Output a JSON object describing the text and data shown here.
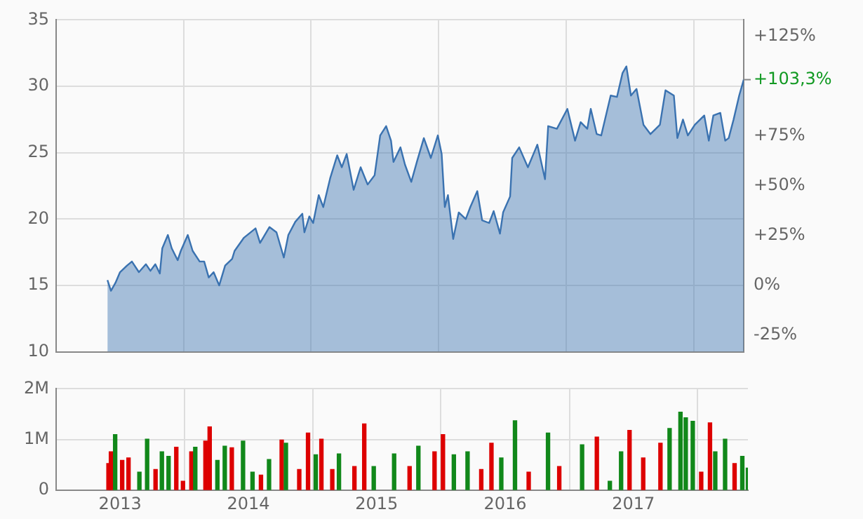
{
  "chart_data": [
    {
      "type": "area",
      "x": [
        "2013-05-28",
        "2013-06-07",
        "2013-06-20",
        "2013-07-03",
        "2013-07-23",
        "2013-08-06",
        "2013-08-26",
        "2013-09-15",
        "2013-09-28",
        "2013-10-12",
        "2013-10-25",
        "2013-11-01",
        "2013-11-17",
        "2013-11-28",
        "2013-12-15",
        "2013-12-24",
        "2014-01-13",
        "2014-01-27",
        "2014-02-16",
        "2014-03-01",
        "2014-03-14",
        "2014-03-28",
        "2014-04-13",
        "2014-04-30",
        "2014-05-20",
        "2014-05-27",
        "2014-06-23",
        "2014-07-26",
        "2014-08-08",
        "2014-09-04",
        "2014-09-24",
        "2014-10-15",
        "2014-10-28",
        "2014-11-17",
        "2014-12-07",
        "2014-12-13",
        "2014-12-27",
        "2015-01-07",
        "2015-01-23",
        "2015-02-05",
        "2015-02-25",
        "2015-03-17",
        "2015-03-30",
        "2015-04-13",
        "2015-05-03",
        "2015-05-23",
        "2015-06-12",
        "2015-07-02",
        "2015-07-18",
        "2015-08-04",
        "2015-08-18",
        "2015-08-25",
        "2015-09-14",
        "2015-09-27",
        "2015-10-15",
        "2015-10-31",
        "2015-11-20",
        "2015-12-10",
        "2015-12-30",
        "2016-01-10",
        "2016-01-19",
        "2016-01-28",
        "2016-02-12",
        "2016-02-28",
        "2016-03-19",
        "2016-04-01",
        "2016-04-21",
        "2016-05-05",
        "2016-05-25",
        "2016-06-07",
        "2016-06-25",
        "2016-07-04",
        "2016-07-24",
        "2016-07-30",
        "2016-08-19",
        "2016-09-13",
        "2016-10-10",
        "2016-11-01",
        "2016-11-10",
        "2016-12-05",
        "2017-01-04",
        "2017-01-26",
        "2017-02-11",
        "2017-03-02",
        "2017-03-12",
        "2017-03-29",
        "2017-04-11",
        "2017-05-08",
        "2017-05-26",
        "2017-06-11",
        "2017-06-22",
        "2017-07-05",
        "2017-07-21",
        "2017-08-10",
        "2017-08-30",
        "2017-09-26",
        "2017-10-12",
        "2017-11-05",
        "2017-11-15",
        "2017-12-01",
        "2017-12-15",
        "2018-01-04",
        "2018-01-31",
        "2018-02-13",
        "2018-02-26",
        "2018-03-18",
        "2018-04-01",
        "2018-04-11",
        "2018-04-25",
        "2018-05-11",
        "2018-05-24"
      ],
      "series": [
        {
          "color": "#3a72b0",
          "values": [
            15.4,
            14.6,
            15.2,
            16.0,
            16.5,
            16.8,
            16.0,
            16.6,
            16.1,
            16.6,
            15.9,
            17.8,
            18.8,
            17.8,
            16.9,
            17.6,
            18.8,
            17.6,
            16.8,
            16.8,
            15.6,
            16.0,
            15.0,
            16.5,
            17.0,
            17.6,
            18.6,
            19.3,
            18.2,
            19.4,
            19.0,
            17.1,
            18.8,
            19.8,
            20.4,
            19.0,
            20.2,
            19.7,
            21.8,
            20.9,
            23.1,
            24.8,
            23.9,
            24.9,
            22.2,
            23.9,
            22.6,
            23.3,
            26.3,
            27.0,
            25.9,
            24.3,
            25.4,
            24.1,
            22.8,
            24.3,
            26.1,
            24.6,
            26.3,
            24.9,
            20.9,
            21.8,
            18.5,
            20.5,
            20.0,
            20.9,
            22.1,
            19.9,
            19.7,
            20.6,
            18.9,
            20.5,
            21.7,
            24.6,
            25.4,
            23.9,
            25.6,
            23.0,
            27.0,
            26.8,
            28.3,
            25.9,
            27.3,
            26.8,
            28.3,
            26.4,
            26.3,
            29.3,
            29.2,
            31.0,
            31.5,
            29.3,
            29.8,
            27.1,
            26.4,
            27.1,
            29.7,
            29.3,
            26.1,
            27.5,
            26.3,
            27.1,
            27.8,
            25.9,
            27.8,
            28.0,
            25.9,
            26.1,
            27.5,
            29.3,
            30.5
          ]
        }
      ],
      "xlim": [
        "2013-01-01",
        "2018-05-24"
      ],
      "xticks": [
        {
          "value": "2014-01-01",
          "label": null
        },
        {
          "value": "2015-01-01",
          "label": null
        },
        {
          "value": "2016-01-01",
          "label": null
        },
        {
          "value": "2017-01-01",
          "label": null
        },
        {
          "value": "2018-01-01",
          "label": null
        }
      ],
      "ylim": [
        10,
        35
      ],
      "yticks": [
        10,
        15,
        20,
        25,
        30,
        35
      ],
      "y2lim": [
        -33.3,
        133.3
      ],
      "y2ticks": [
        {
          "value": -25,
          "label": "-25%"
        },
        {
          "value": 0,
          "label": "0%"
        },
        {
          "value": 25,
          "label": "+25%"
        },
        {
          "value": 50,
          "label": "+50%"
        },
        {
          "value": 75,
          "label": "+75%"
        },
        {
          "value": 125,
          "label": "+125%"
        }
      ],
      "annotations": [
        {
          "text": "+103,3%",
          "x": "2018-05-24",
          "y": 30.5
        }
      ],
      "tick_labels": "y",
      "grid": true,
      "legend": false
    },
    {
      "type": "bar",
      "x": [
        "2013-05-30",
        "2013-06-06",
        "2013-06-18",
        "2013-07-08",
        "2013-07-26",
        "2013-08-26",
        "2013-09-17",
        "2013-10-11",
        "2013-10-29",
        "2013-11-17",
        "2013-12-09",
        "2013-12-28",
        "2014-01-21",
        "2014-02-01",
        "2014-03-02",
        "2014-03-14",
        "2014-04-05",
        "2014-04-26",
        "2014-05-16",
        "2014-06-17",
        "2014-07-14",
        "2014-08-07",
        "2014-08-30",
        "2014-10-05",
        "2014-10-17",
        "2014-11-24",
        "2014-12-19",
        "2015-01-10",
        "2015-01-26",
        "2015-02-26",
        "2015-03-17",
        "2015-04-30",
        "2015-05-28",
        "2015-06-24",
        "2015-08-21",
        "2015-10-04",
        "2015-10-29",
        "2015-12-14",
        "2016-01-07",
        "2016-02-07",
        "2016-03-17",
        "2016-04-25",
        "2016-05-24",
        "2016-06-21",
        "2016-07-30",
        "2016-09-07",
        "2016-11-01",
        "2016-12-03",
        "2017-02-06",
        "2017-03-20",
        "2017-04-26",
        "2017-05-28",
        "2017-06-21",
        "2017-07-30",
        "2017-09-17",
        "2017-10-13",
        "2017-11-13",
        "2017-11-28",
        "2017-12-18",
        "2018-01-11",
        "2018-02-05",
        "2018-02-20",
        "2018-03-20",
        "2018-04-16",
        "2018-05-08",
        "2018-05-24"
      ],
      "series": [
        {
          "values": [
            530000,
            760000,
            1100000,
            590000,
            640000,
            360000,
            1010000,
            410000,
            760000,
            670000,
            850000,
            180000,
            760000,
            850000,
            970000,
            1250000,
            590000,
            870000,
            840000,
            970000,
            360000,
            300000,
            610000,
            990000,
            930000,
            410000,
            1130000,
            700000,
            1010000,
            410000,
            720000,
            470000,
            1310000,
            470000,
            720000,
            470000,
            870000,
            760000,
            1100000,
            700000,
            760000,
            410000,
            930000,
            640000,
            1370000,
            360000,
            1130000,
            470000,
            900000,
            1050000,
            180000,
            760000,
            1180000,
            640000,
            930000,
            1220000,
            1540000,
            1430000,
            1360000,
            360000,
            1330000,
            760000,
            1010000,
            530000,
            670000,
            440000
          ],
          "colors": [
            "#dd0000",
            "#dd0000",
            "#11881a",
            "#dd0000",
            "#dd0000",
            "#11881a",
            "#11881a",
            "#dd0000",
            "#11881a",
            "#11881a",
            "#dd0000",
            "#dd0000",
            "#dd0000",
            "#11881a",
            "#dd0000",
            "#dd0000",
            "#11881a",
            "#11881a",
            "#dd0000",
            "#11881a",
            "#11881a",
            "#dd0000",
            "#11881a",
            "#dd0000",
            "#11881a",
            "#dd0000",
            "#dd0000",
            "#11881a",
            "#dd0000",
            "#dd0000",
            "#11881a",
            "#dd0000",
            "#dd0000",
            "#11881a",
            "#11881a",
            "#dd0000",
            "#11881a",
            "#dd0000",
            "#dd0000",
            "#11881a",
            "#11881a",
            "#dd0000",
            "#dd0000",
            "#11881a",
            "#11881a",
            "#dd0000",
            "#11881a",
            "#dd0000",
            "#11881a",
            "#dd0000",
            "#11881a",
            "#11881a",
            "#dd0000",
            "#dd0000",
            "#dd0000",
            "#11881a",
            "#11881a",
            "#11881a",
            "#11881a",
            "#dd0000",
            "#dd0000",
            "#11881a",
            "#11881a",
            "#dd0000",
            "#11881a",
            "#11881a"
          ]
        }
      ],
      "xlim": [
        "2013-01-01",
        "2018-05-24"
      ],
      "xticks": [
        {
          "value": "2013-07-02",
          "label": "2013"
        },
        {
          "value": "2014-01-01",
          "label": null
        },
        {
          "value": "2014-07-02",
          "label": "2014"
        },
        {
          "value": "2015-01-01",
          "label": null
        },
        {
          "value": "2015-07-02",
          "label": "2015"
        },
        {
          "value": "2016-01-01",
          "label": null
        },
        {
          "value": "2016-07-02",
          "label": "2016"
        },
        {
          "value": "2017-01-01",
          "label": null
        },
        {
          "value": "2017-07-02",
          "label": "2017"
        },
        {
          "value": "2018-01-01",
          "label": null
        }
      ],
      "ylim": [
        0,
        2000000
      ],
      "yticks": [
        0,
        {
          "value": 1000000,
          "label": "1M"
        },
        {
          "value": 2000000,
          "label": "2M"
        }
      ],
      "grid": true,
      "legend": false
    }
  ]
}
